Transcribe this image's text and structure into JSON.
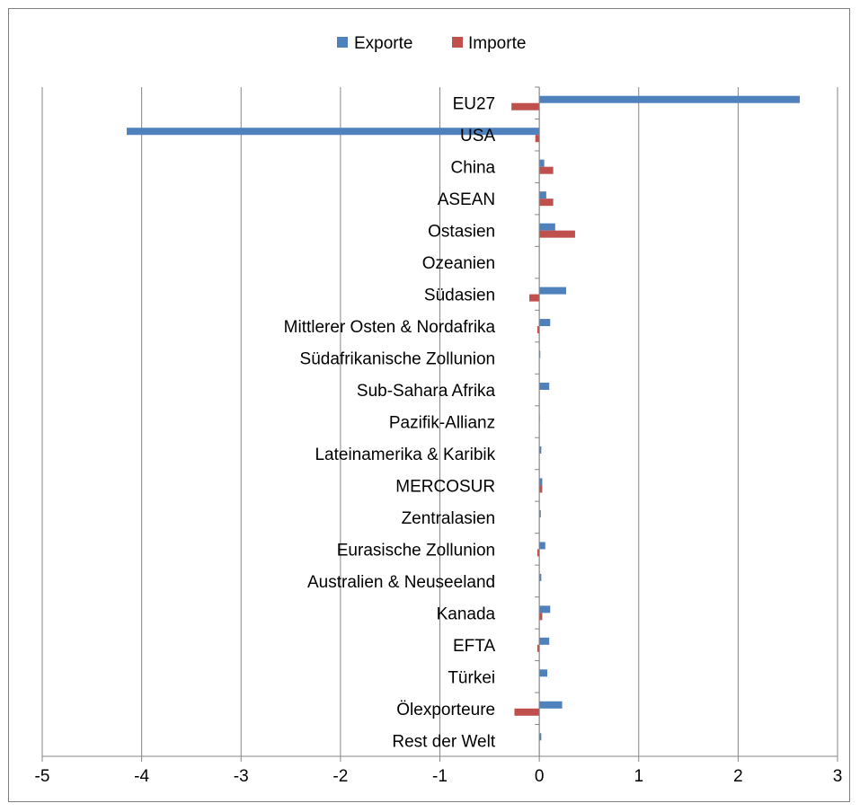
{
  "chart_data": {
    "type": "bar",
    "orientation": "horizontal",
    "title": "",
    "xlabel": "",
    "ylabel": "",
    "xlim": [
      -5,
      3
    ],
    "x_ticks": [
      -5,
      -4,
      -3,
      -2,
      -1,
      0,
      1,
      2,
      3
    ],
    "grid": "vertical",
    "legend_position": "top",
    "categories": [
      "EU27",
      "USA",
      "China",
      "ASEAN",
      "Ostasien",
      "Ozeanien",
      "Südasien",
      "Mittlerer Osten & Nordafrika",
      "Südafrikanische Zollunion",
      "Sub-Sahara Afrika",
      "Pazifik-Allianz",
      "Lateinamerika & Karibik",
      "MERCOSUR",
      "Zentralasien",
      "Eurasische Zollunion",
      "Australien & Neuseeland",
      "Kanada",
      "EFTA",
      "Türkei",
      "Ölexporteure",
      "Rest der Welt"
    ],
    "series": [
      {
        "name": "Exporte",
        "color": "#4f81bd",
        "values": [
          2.62,
          -4.15,
          0.05,
          0.07,
          0.16,
          0.0,
          0.27,
          0.11,
          0.01,
          0.1,
          0.005,
          0.02,
          0.03,
          0.015,
          0.06,
          0.02,
          0.11,
          0.1,
          0.08,
          0.23,
          0.02
        ]
      },
      {
        "name": "Importe",
        "color": "#c0504d",
        "values": [
          -0.28,
          -0.04,
          0.14,
          0.14,
          0.36,
          0.0,
          -0.1,
          -0.02,
          0.0,
          0.0,
          0.0,
          0.0,
          0.03,
          0.0,
          -0.02,
          0.0,
          0.03,
          -0.02,
          0.0,
          -0.25,
          0.0
        ]
      }
    ]
  }
}
